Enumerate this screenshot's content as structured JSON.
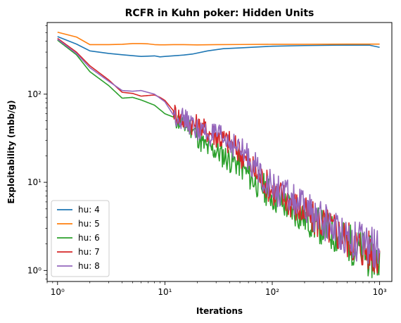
{
  "chart_data": {
    "type": "line",
    "title": "RCFR in Kuhn poker: Hidden Units",
    "xlabel": "Iterations",
    "ylabel": "Exploitability (mbb/g)",
    "x_scale": "log",
    "y_scale": "log",
    "xlim": [
      0.8,
      1300
    ],
    "ylim": [
      0.75,
      650
    ],
    "x_ticks": [
      {
        "value": 1,
        "label": "10⁰"
      },
      {
        "value": 10,
        "label": "10¹"
      },
      {
        "value": 100,
        "label": "10²"
      },
      {
        "value": 1000,
        "label": "10³"
      }
    ],
    "y_ticks": [
      {
        "value": 1,
        "label": "10⁰"
      },
      {
        "value": 10,
        "label": "10¹"
      },
      {
        "value": 100,
        "label": "10²"
      }
    ],
    "grid": false,
    "legend_position": "lower-left",
    "series": [
      {
        "name": "hu: 4",
        "color": "#1f77b4",
        "points": [
          [
            1,
            450
          ],
          [
            1.5,
            370
          ],
          [
            2,
            310
          ],
          [
            3,
            290
          ],
          [
            4,
            280
          ],
          [
            6,
            268
          ],
          [
            8,
            272
          ],
          [
            9,
            265
          ],
          [
            10,
            268
          ],
          [
            15,
            278
          ],
          [
            18,
            285
          ],
          [
            25,
            310
          ],
          [
            35,
            328
          ],
          [
            50,
            335
          ],
          [
            80,
            345
          ],
          [
            100,
            350
          ],
          [
            200,
            356
          ],
          [
            400,
            360
          ],
          [
            800,
            360
          ],
          [
            1000,
            340
          ]
        ]
      },
      {
        "name": "hu: 5",
        "color": "#ff7f0e",
        "points": [
          [
            1,
            505
          ],
          [
            1.5,
            445
          ],
          [
            2,
            365
          ],
          [
            3,
            365
          ],
          [
            4,
            368
          ],
          [
            5,
            375
          ],
          [
            6,
            375
          ],
          [
            7,
            372
          ],
          [
            8,
            365
          ],
          [
            9,
            363
          ],
          [
            10,
            363
          ],
          [
            12,
            365
          ],
          [
            15,
            365
          ],
          [
            20,
            362
          ],
          [
            30,
            365
          ],
          [
            50,
            366
          ],
          [
            100,
            368
          ],
          [
            200,
            368
          ],
          [
            500,
            370
          ],
          [
            1000,
            370
          ]
        ]
      }
    ],
    "noisy_series": [
      {
        "name": "hu: 6",
        "color": "#2ca02c",
        "anchors": [
          [
            1,
            410
          ],
          [
            1.5,
            280
          ],
          [
            2,
            180
          ],
          [
            3,
            125
          ],
          [
            4,
            90
          ],
          [
            5,
            92
          ],
          [
            6,
            86
          ],
          [
            8,
            75
          ],
          [
            10,
            60
          ],
          [
            12,
            55
          ],
          [
            15,
            43
          ],
          [
            17,
            44
          ],
          [
            20,
            34
          ],
          [
            22,
            28
          ],
          [
            25,
            24
          ],
          [
            30,
            23
          ],
          [
            40,
            18
          ],
          [
            50,
            16
          ],
          [
            60,
            12
          ],
          [
            70,
            10
          ],
          [
            80,
            9
          ],
          [
            100,
            7
          ],
          [
            150,
            5
          ],
          [
            200,
            4
          ],
          [
            300,
            3
          ],
          [
            500,
            2.1
          ],
          [
            700,
            1.6
          ],
          [
            1000,
            1.2
          ]
        ]
      },
      {
        "name": "hu: 7",
        "color": "#d62728",
        "anchors": [
          [
            1,
            430
          ],
          [
            1.5,
            300
          ],
          [
            2,
            210
          ],
          [
            3,
            145
          ],
          [
            4,
            105
          ],
          [
            5,
            102
          ],
          [
            6,
            95
          ],
          [
            8,
            98
          ],
          [
            9,
            92
          ],
          [
            10,
            85
          ],
          [
            12,
            65
          ],
          [
            15,
            50
          ],
          [
            20,
            44
          ],
          [
            25,
            38
          ],
          [
            30,
            34
          ],
          [
            40,
            28
          ],
          [
            50,
            22
          ],
          [
            60,
            16
          ],
          [
            70,
            13
          ],
          [
            80,
            11
          ],
          [
            100,
            8.2
          ],
          [
            150,
            6
          ],
          [
            200,
            4.4
          ],
          [
            300,
            3.4
          ],
          [
            500,
            2.3
          ],
          [
            700,
            1.8
          ],
          [
            1000,
            1.5
          ]
        ]
      },
      {
        "name": "hu: 8",
        "color": "#9467bd",
        "anchors": [
          [
            1,
            420
          ],
          [
            1.5,
            290
          ],
          [
            2,
            200
          ],
          [
            3,
            140
          ],
          [
            4,
            110
          ],
          [
            5,
            108
          ],
          [
            6,
            110
          ],
          [
            8,
            100
          ],
          [
            10,
            82
          ],
          [
            12,
            58
          ],
          [
            15,
            52
          ],
          [
            20,
            40
          ],
          [
            25,
            35
          ],
          [
            30,
            33
          ],
          [
            40,
            29
          ],
          [
            50,
            23
          ],
          [
            60,
            19
          ],
          [
            70,
            15
          ],
          [
            80,
            12
          ],
          [
            100,
            8.7
          ],
          [
            150,
            6.5
          ],
          [
            200,
            5
          ],
          [
            300,
            3.6
          ],
          [
            500,
            2.5
          ],
          [
            700,
            2.0
          ],
          [
            1000,
            1.7
          ]
        ]
      }
    ]
  }
}
